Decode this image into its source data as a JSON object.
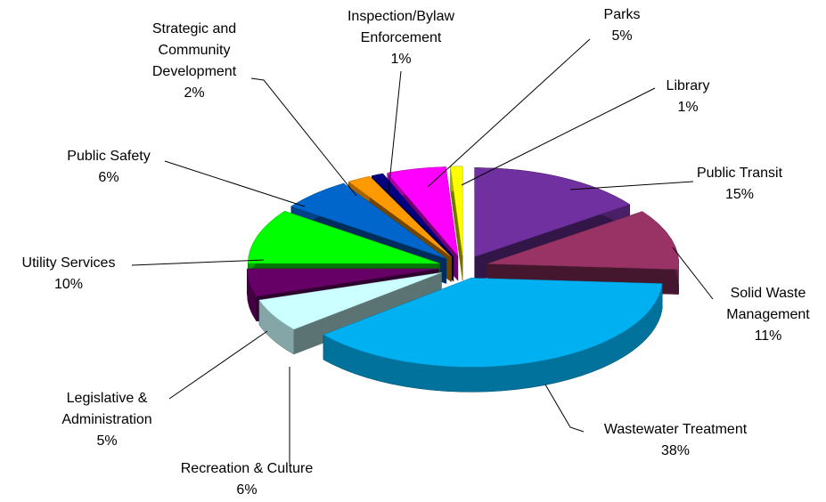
{
  "chart_data": {
    "type": "pie3d",
    "categories": [
      "Public Transit",
      "Solid Waste\nManagement",
      "Wastewater Treatment",
      "Recreation & Culture",
      "Legislative &\nAdministration",
      "Utility Services",
      "Public Safety",
      "Strategic and\nCommunity\nDevelopment",
      "Inspection/Bylaw\nEnforcement",
      "Parks",
      "Library"
    ],
    "values": [
      15,
      11,
      38,
      6,
      5,
      10,
      6,
      2,
      1,
      5,
      1
    ],
    "value_labels": [
      "15%",
      "11%",
      "38%",
      "6%",
      "5%",
      "10%",
      "6%",
      "2%",
      "1%",
      "5%",
      "1%"
    ],
    "colors": [
      "#7030a0",
      "#993366",
      "#00b0f0",
      "#ccffff",
      "#660066",
      "#00ff00",
      "#0066cc",
      "#ff9900",
      "#000080",
      "#ff00ff",
      "#ffff00"
    ]
  }
}
